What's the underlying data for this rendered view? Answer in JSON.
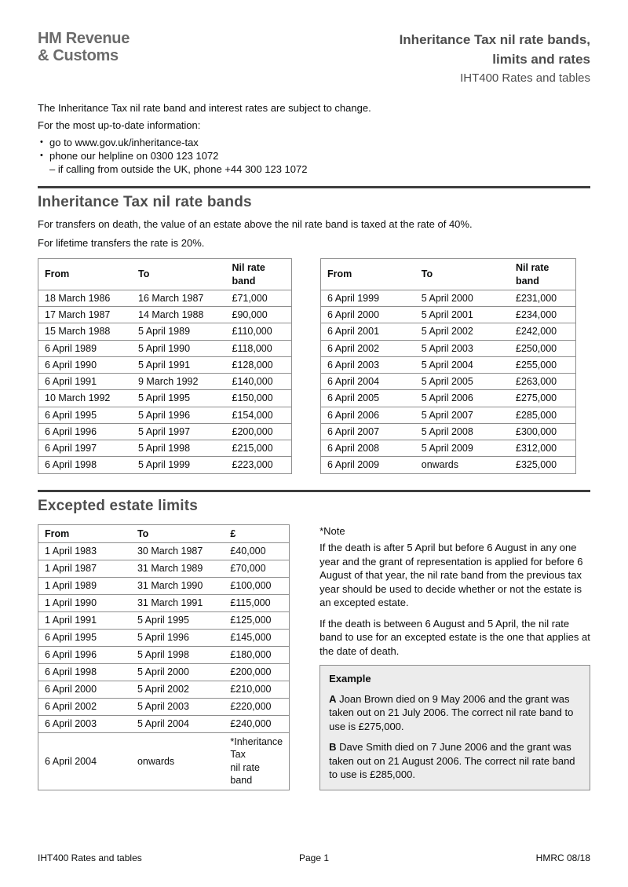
{
  "header": {
    "logo_line1": "HM Revenue",
    "logo_line2": "& Customs",
    "title_line1": "Inheritance Tax nil rate bands,",
    "title_line2": "limits and rates",
    "subtitle": "IHT400 Rates and tables"
  },
  "intro": {
    "line1": "The Inheritance Tax nil rate band and interest rates are subject to change.",
    "line2": "For the most up-to-date information:",
    "bullet_glyph": "•",
    "bullets": [
      "go to www.gov.uk/inheritance-tax",
      "phone our helpline on 0300 123 1072"
    ],
    "bullet_sub": "– if calling from outside the UK, phone +44 300 123 1072"
  },
  "nil_rate_section": {
    "heading": "Inheritance Tax nil rate bands",
    "para1": "For transfers on death, the value of an estate above the nil rate band is taxed at the rate of 40%.",
    "para2": "For lifetime transfers the rate is 20%.",
    "table_left": {
      "headers": [
        "From",
        "To",
        "Nil rate band"
      ],
      "rows": [
        [
          "18 March 1986",
          "16 March 1987",
          "£71,000"
        ],
        [
          "17 March 1987",
          "14 March 1988",
          "£90,000"
        ],
        [
          "15 March 1988",
          "5 April 1989",
          "£110,000"
        ],
        [
          "6 April 1989",
          "5 April 1990",
          "£118,000"
        ],
        [
          "6 April 1990",
          "5 April 1991",
          "£128,000"
        ],
        [
          "6 April 1991",
          "9 March 1992",
          "£140,000"
        ],
        [
          "10 March 1992",
          "5 April 1995",
          "£150,000"
        ],
        [
          "6 April 1995",
          "5 April 1996",
          "£154,000"
        ],
        [
          "6 April 1996",
          "5 April 1997",
          "£200,000"
        ],
        [
          "6 April 1997",
          "5 April 1998",
          "£215,000"
        ],
        [
          "6 April 1998",
          "5 April 1999",
          "£223,000"
        ]
      ]
    },
    "table_right": {
      "headers": [
        "From",
        "To",
        "Nil rate band"
      ],
      "rows": [
        [
          "6 April 1999",
          "5 April 2000",
          "£231,000"
        ],
        [
          "6 April 2000",
          "5 April 2001",
          "£234,000"
        ],
        [
          "6 April 2001",
          "5 April 2002",
          "£242,000"
        ],
        [
          "6 April 2002",
          "5 April 2003",
          "£250,000"
        ],
        [
          "6 April 2003",
          "5 April 2004",
          "£255,000"
        ],
        [
          "6 April 2004",
          "5 April 2005",
          "£263,000"
        ],
        [
          "6 April 2005",
          "5 April 2006",
          "£275,000"
        ],
        [
          "6 April 2006",
          "5 April 2007",
          "£285,000"
        ],
        [
          "6 April 2007",
          "5 April 2008",
          "£300,000"
        ],
        [
          "6 April 2008",
          "5 April 2009",
          "£312,000"
        ],
        [
          "6 April 2009",
          "onwards",
          "£325,000"
        ]
      ]
    }
  },
  "excepted_section": {
    "heading": "Excepted estate limits",
    "table": {
      "headers": [
        "From",
        "To",
        "£"
      ],
      "rows": [
        [
          "1 April 1983",
          "30 March 1987",
          "£40,000"
        ],
        [
          "1 April 1987",
          "31 March 1989",
          "£70,000"
        ],
        [
          "1 April 1989",
          "31 March 1990",
          "£100,000"
        ],
        [
          "1 April 1990",
          "31 March 1991",
          "£115,000"
        ],
        [
          "1 April 1991",
          "5 April 1995",
          "£125,000"
        ],
        [
          "6 April 1995",
          "5 April 1996",
          "£145,000"
        ],
        [
          "6 April 1996",
          "5 April 1998",
          "£180,000"
        ],
        [
          "6 April 1998",
          "5 April 2000",
          "£200,000"
        ],
        [
          "6 April 2000",
          "5 April 2002",
          "£210,000"
        ],
        [
          "6 April 2002",
          "5 April 2003",
          "£220,000"
        ],
        [
          "6 April 2003",
          "5 April 2004",
          "£240,000"
        ],
        [
          "6 April 2004",
          "onwards",
          "*Inheritance Tax\nnil rate band"
        ]
      ]
    },
    "note_title": "*Note",
    "note_para1": "If the death is after 5 April but before 6 August in any one year and the grant of representation is applied for before 6 August of that year, the nil rate band from the previous tax year should be used to decide whether or not the estate is an excepted estate.",
    "note_para2": "If the death is between 6 August and 5 April, the nil rate band to use for an excepted estate is the one that applies at the date of death.",
    "example": {
      "title": "Example",
      "item_a_label": "A",
      "item_a_text": " Joan Brown died on 9 May 2006 and the grant was taken out on 21 July 2006. The correct nil rate band to use is £275,000.",
      "item_b_label": "B",
      "item_b_text": " Dave Smith died on 7 June 2006 and the grant was taken out on 21 August 2006. The correct nil rate band to use is £285,000."
    }
  },
  "footer": {
    "left": "IHT400 Rates and tables",
    "center": "Page 1",
    "right": "HMRC 08/18"
  },
  "colors": {
    "heading_gray": "#4d4d4d",
    "logo_gray": "#6b6b6b",
    "rule_dark": "#3d3d3d",
    "table_border": "#8e8e8e",
    "example_bg": "#ececec"
  }
}
